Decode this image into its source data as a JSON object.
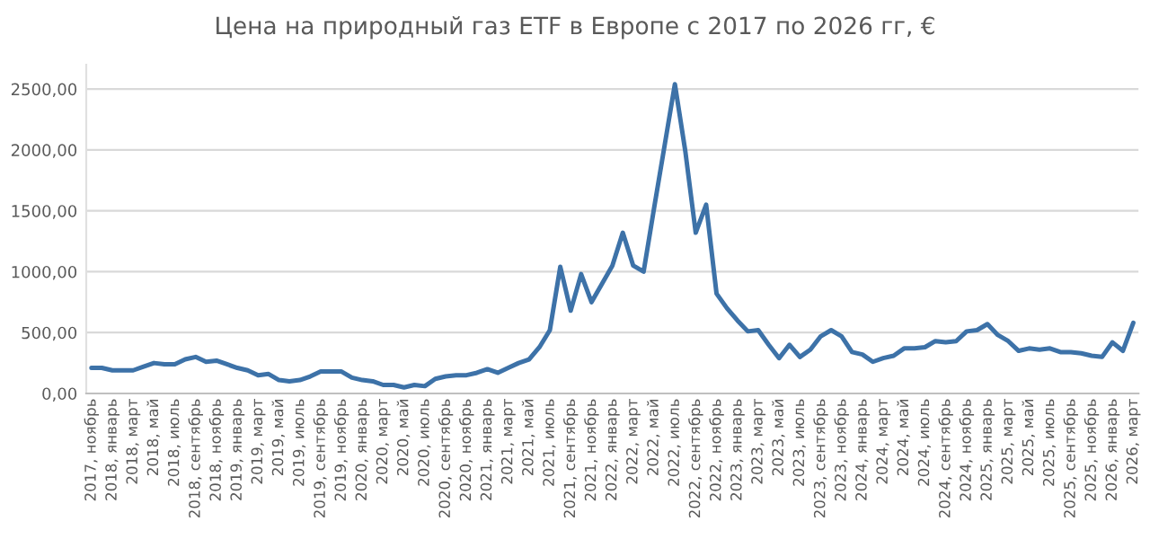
{
  "chart_data": {
    "type": "line",
    "title": "Цена на природный газ ETF в Европе с 2017 по 2026 гг, €",
    "categories": [
      "2017, ноябрь",
      null,
      "2018, январь",
      null,
      "2018, март",
      null,
      "2018, май",
      null,
      "2018, июль",
      null,
      "2018, сентябрь",
      null,
      "2018, ноябрь",
      null,
      "2019, январь",
      null,
      "2019, март",
      null,
      "2019, май",
      null,
      "2019, июль",
      null,
      "2019, сентябрь",
      null,
      "2019, ноябрь",
      null,
      "2020, январь",
      null,
      "2020, март",
      null,
      "2020, май",
      null,
      "2020, июль",
      null,
      "2020, сентябрь",
      null,
      "2020, ноябрь",
      null,
      "2021, январь",
      null,
      "2021, март",
      null,
      "2021, май",
      null,
      "2021, июль",
      null,
      "2021, сентябрь",
      null,
      "2021, ноябрь",
      null,
      "2022, январь",
      null,
      "2022, март",
      null,
      "2022, май",
      null,
      "2022, июль",
      null,
      "2022, сентябрь",
      null,
      "2022, ноябрь",
      null,
      "2023, январь",
      null,
      "2023, март",
      null,
      "2023, май",
      null,
      "2023, июль",
      null,
      "2023, сентябрь",
      null,
      "2023, ноябрь",
      null,
      "2024, январь",
      null,
      "2024, март",
      null,
      "2024, май",
      null,
      "2024, июль",
      null,
      "2024, сентябрь",
      null,
      "2024, ноябрь",
      null,
      "2025, январь",
      null,
      "2025, март",
      null,
      "2025, май",
      null,
      "2025, июль",
      null,
      "2025, сентябрь",
      null,
      "2025, ноябрь",
      null,
      "2026, январь",
      null,
      "2026, март"
    ],
    "series": [
      {
        "color": "#3d72a8",
        "values": [
          210,
          210,
          190,
          190,
          190,
          220,
          250,
          240,
          240,
          280,
          300,
          260,
          270,
          240,
          210,
          190,
          150,
          160,
          110,
          100,
          110,
          140,
          180,
          180,
          180,
          130,
          110,
          100,
          70,
          70,
          50,
          70,
          60,
          120,
          140,
          150,
          150,
          170,
          200,
          170,
          210,
          250,
          280,
          380,
          520,
          1040,
          680,
          980,
          750,
          900,
          1050,
          1320,
          1050,
          1000,
          1520,
          2030,
          2540,
          1990,
          1320,
          1550,
          820,
          700,
          600,
          510,
          520,
          400,
          290,
          400,
          300,
          360,
          470,
          520,
          470,
          340,
          320,
          260,
          290,
          310,
          370,
          370,
          380,
          430,
          420,
          430,
          510,
          520,
          570,
          480,
          430,
          350,
          370,
          360,
          370,
          340,
          340,
          330,
          310,
          300,
          420,
          350,
          580
        ]
      }
    ],
    "ylim": [
      0,
      2700
    ],
    "yticks": [
      {
        "value": 0,
        "label": "0,00"
      },
      {
        "value": 500,
        "label": "500,00"
      },
      {
        "value": 1000,
        "label": "1000,00"
      },
      {
        "value": 1500,
        "label": "1500,00"
      },
      {
        "value": 2000,
        "label": "2000,00"
      },
      {
        "value": 2500,
        "label": "2500,00"
      }
    ],
    "grid": "y",
    "legend": false,
    "marker": "none",
    "line_style": "solid"
  }
}
